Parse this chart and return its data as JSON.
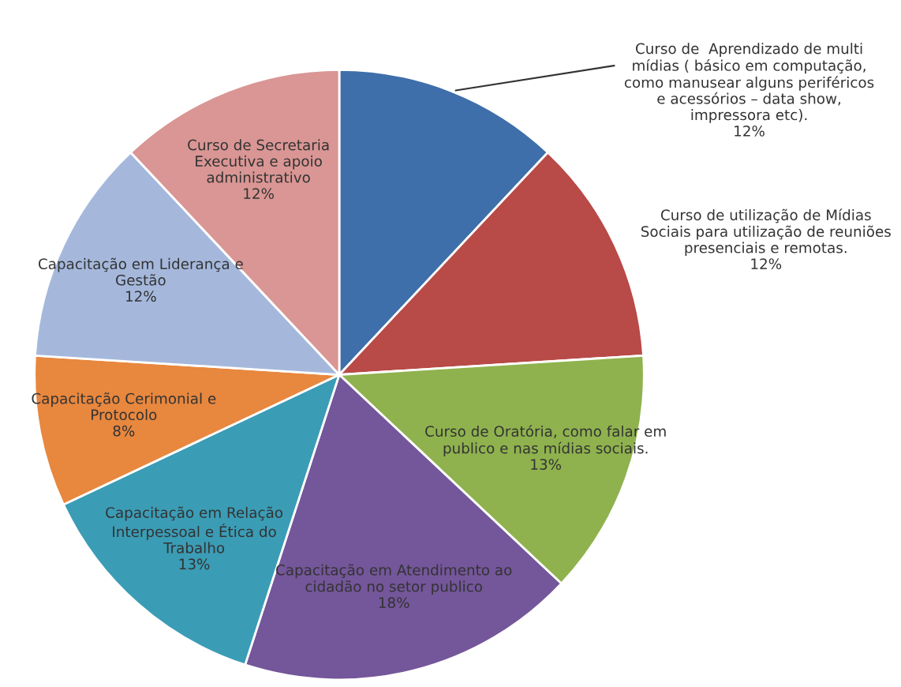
{
  "chart_data": {
    "type": "pie",
    "categories": [
      "Curso de  Aprendizado de multi\nmídias ( básico em computação,\ncomo manusear alguns periféricos\ne acessórios – data show,\nimpressora etc).",
      "Curso de utilização de Mídias\nSociais para utilização de reuniões\npresenciais e remotas.",
      "Curso de Oratória, como falar em\npublico e nas mídias sociais.",
      "Capacitação em Atendimento ao\ncidadão no setor publico",
      "Capacitação em Relação\nInterpessoal e Ética do\nTrabalho",
      "Capacitação Cerimonial e\nProtocolo",
      "Capacitação em Liderança e\nGestão",
      "Curso de Secretaria\nExecutiva e apoio\nadministrativo"
    ],
    "values": [
      12,
      12,
      13,
      18,
      13,
      8,
      12,
      12
    ],
    "value_labels": [
      "12%",
      "12%",
      "13%",
      "18%",
      "13%",
      "8%",
      "12%",
      "12%"
    ],
    "colors": [
      "#3f6faa",
      "#b84a47",
      "#8fb24e",
      "#74569a",
      "#3b9cb5",
      "#e8873e",
      "#a5b8dc",
      "#d99694"
    ]
  }
}
